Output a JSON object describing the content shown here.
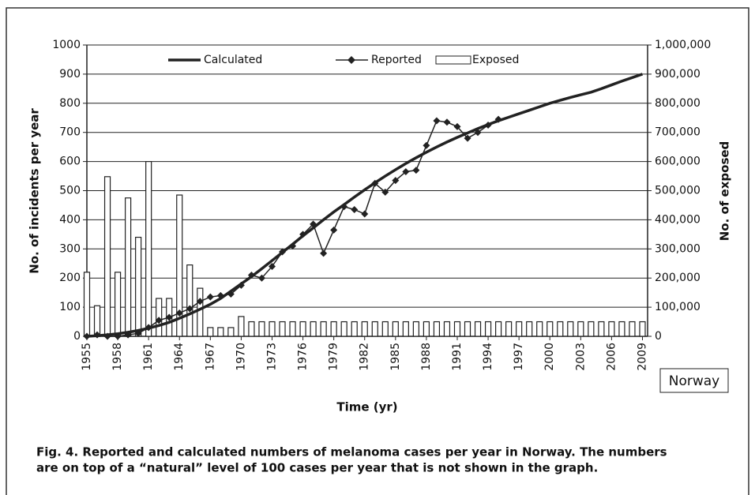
{
  "chart_data": {
    "type": "bar_line",
    "xlabel": "Time (yr)",
    "ylabel": "No. of incidents per year",
    "y2label": "No. of exposed",
    "annotation": "Norway",
    "caption": [
      "Fig. 4. Reported and calculated numbers of melanoma cases per year in Norway. The numbers",
      "are on top of a “natural” level of 100 cases per year that is not shown in the graph."
    ],
    "x": [
      1955,
      1956,
      1957,
      1958,
      1959,
      1960,
      1961,
      1962,
      1963,
      1964,
      1965,
      1966,
      1967,
      1968,
      1969,
      1970,
      1971,
      1972,
      1973,
      1974,
      1975,
      1976,
      1977,
      1978,
      1979,
      1980,
      1981,
      1982,
      1983,
      1984,
      1985,
      1986,
      1987,
      1988,
      1989,
      1990,
      1991,
      1992,
      1993,
      1994,
      1995,
      1996,
      1997,
      1998,
      1999,
      2000,
      2001,
      2002,
      2003,
      2004,
      2005,
      2006,
      2007,
      2008,
      2009
    ],
    "xlim": [
      1955,
      2009.5
    ],
    "xticks": [
      1955,
      1958,
      1961,
      1964,
      1967,
      1970,
      1973,
      1976,
      1979,
      1982,
      1985,
      1988,
      1991,
      1994,
      1997,
      2000,
      2003,
      2006,
      2009
    ],
    "ylim": [
      0,
      1000
    ],
    "yticks": [
      0,
      100,
      200,
      300,
      400,
      500,
      600,
      700,
      800,
      900,
      1000
    ],
    "y2lim": [
      0,
      1000000
    ],
    "y2ticks": [
      {
        "value": 0,
        "label": "0"
      },
      {
        "value": 100000,
        "label": "100,000"
      },
      {
        "value": 200000,
        "label": "200,000"
      },
      {
        "value": 300000,
        "label": "300,000"
      },
      {
        "value": 400000,
        "label": "400,000"
      },
      {
        "value": 500000,
        "label": "500,000"
      },
      {
        "value": 600000,
        "label": "600,000"
      },
      {
        "value": 700000,
        "label": "700,000"
      },
      {
        "value": 800000,
        "label": "800,000"
      },
      {
        "value": 900000,
        "label": "900,000"
      },
      {
        "value": 1000000,
        "label": "1,000,000"
      }
    ],
    "grid": true,
    "series": [
      {
        "name": "Calculated",
        "kind": "line",
        "color": "#222222",
        "values": [
          0,
          2,
          5,
          9,
          14,
          20,
          28,
          37,
          48,
          62,
          77,
          93,
          110,
          130,
          155,
          180,
          205,
          232,
          260,
          288,
          316,
          345,
          372,
          400,
          427,
          452,
          478,
          503,
          527,
          550,
          572,
          593,
          613,
          632,
          650,
          667,
          683,
          698,
          713,
          727,
          740,
          752,
          764,
          776,
          788,
          800,
          810,
          820,
          829,
          838,
          850,
          863,
          876,
          888,
          900
        ]
      },
      {
        "name": "Reported",
        "kind": "marker-line",
        "color": "#222222",
        "values": [
          0,
          5,
          0,
          0,
          5,
          10,
          30,
          55,
          65,
          80,
          95,
          120,
          135,
          140,
          145,
          175,
          210,
          200,
          240,
          290,
          310,
          350,
          385,
          285,
          365,
          445,
          435,
          420,
          525,
          495,
          535,
          565,
          570,
          655,
          740,
          735,
          720,
          680,
          700,
          725,
          745,
          null,
          null,
          null,
          null,
          null,
          null,
          null,
          null,
          null,
          null,
          null,
          null,
          null,
          null
        ]
      },
      {
        "name": "Exposed",
        "kind": "bar",
        "axis": "y2",
        "color": "#ffffff",
        "values": [
          220000,
          105000,
          548000,
          220000,
          475000,
          340000,
          600000,
          130000,
          130000,
          485000,
          245000,
          165000,
          30000,
          30000,
          30000,
          68000,
          50000,
          50000,
          50000,
          50000,
          50000,
          50000,
          50000,
          50000,
          50000,
          50000,
          50000,
          50000,
          50000,
          50000,
          50000,
          50000,
          50000,
          50000,
          50000,
          50000,
          50000,
          50000,
          50000,
          50000,
          50000,
          50000,
          50000,
          50000,
          50000,
          50000,
          50000,
          50000,
          50000,
          50000,
          50000,
          50000,
          50000,
          50000,
          50000
        ]
      }
    ]
  }
}
